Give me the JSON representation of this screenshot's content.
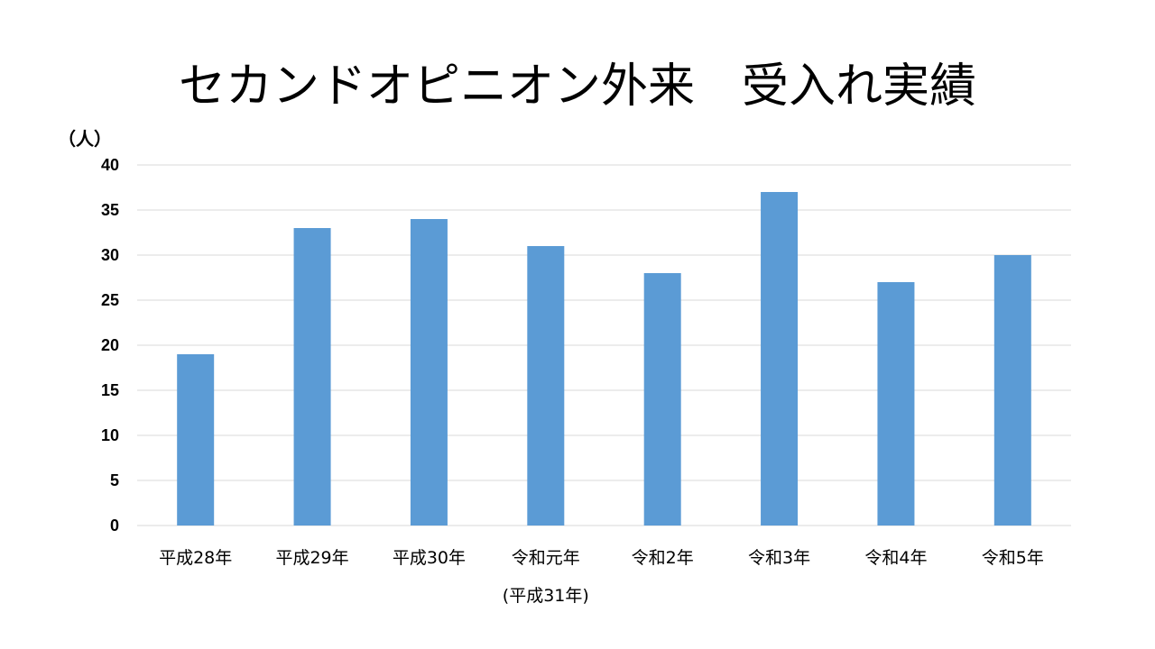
{
  "chart_data": {
    "type": "bar",
    "title": "セカンドオピニオン外来　受入れ実績",
    "ylabel": "（人）",
    "xlabel": "",
    "categories": [
      "平成28年",
      "平成29年",
      "平成30年",
      "令和元年",
      "令和2年",
      "令和3年",
      "令和4年",
      "令和5年"
    ],
    "category_sublabels": [
      "",
      "",
      "",
      "(平成31年)",
      "",
      "",
      "",
      ""
    ],
    "values": [
      19,
      33,
      34,
      31,
      28,
      37,
      27,
      30
    ],
    "ylim": [
      0,
      40
    ],
    "yticks": [
      "0",
      "5",
      "10",
      "15",
      "20",
      "25",
      "30",
      "35",
      "40"
    ],
    "grid": true,
    "legend": "none",
    "bar_color": "#5b9bd5"
  }
}
